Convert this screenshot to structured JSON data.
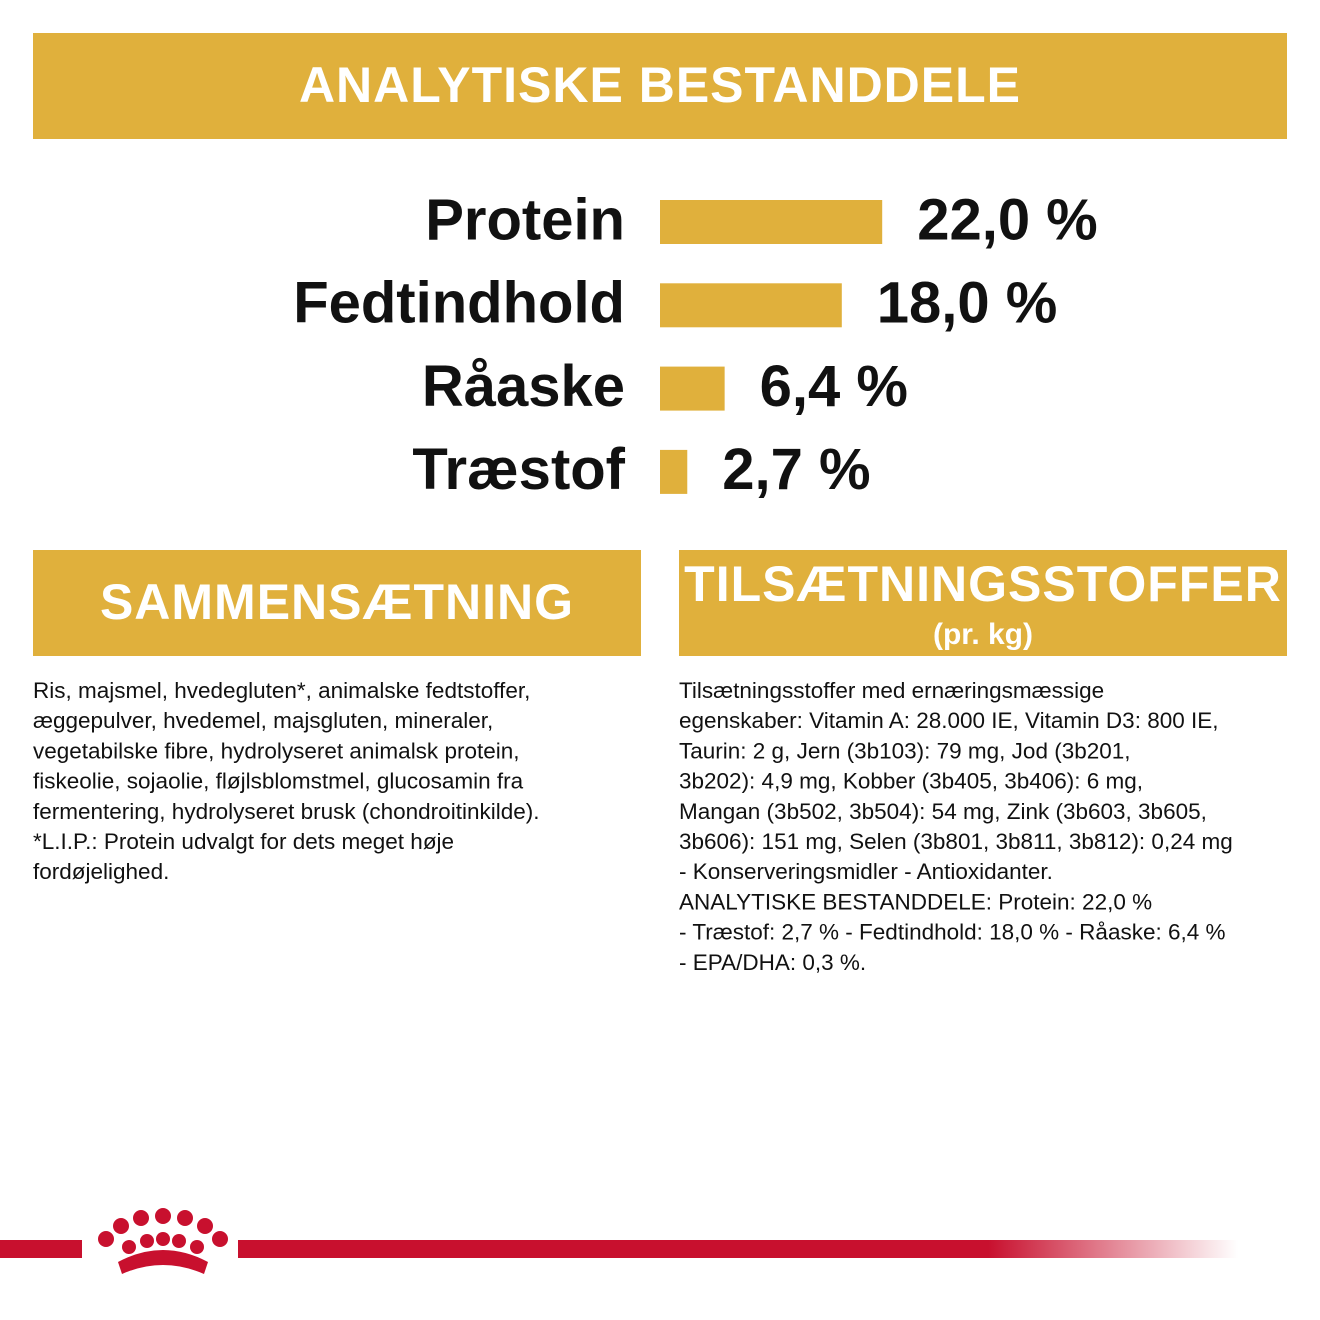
{
  "header": {
    "title": "ANALYTISKE BESTANDDELE"
  },
  "chart_data": {
    "type": "bar",
    "orientation": "horizontal",
    "categories": [
      "Protein",
      "Fedtindhold",
      "Råaske",
      "Træstof"
    ],
    "values": [
      22.0,
      18.0,
      6.4,
      2.7
    ],
    "value_labels": [
      "22,0 %",
      "18,0 %",
      "6,4 %",
      "2,7 %"
    ],
    "color": "#e0b03c"
  },
  "composition": {
    "title": "SAMMENSÆTNING",
    "lines": [
      "Ris, majsmel, hvedegluten*, animalske fedtstoffer,",
      "æggepulver, hvedemel, majsgluten, mineraler,",
      "vegetabilske fibre, hydrolyseret animalsk protein,",
      "fiskeolie, sojaolie, fløjlsblomstmel, glucosamin fra",
      "fermentering, hydrolyseret brusk (chondroitinkilde).",
      "*L.I.P.: Protein udvalgt for dets meget høje",
      "fordøjelighed."
    ]
  },
  "additives": {
    "title": "TILSÆTNINGSSTOFFER",
    "subtitle": "(pr. kg)",
    "lines": [
      "Tilsætningsstoffer med ernæringsmæssige",
      "egenskaber: Vitamin A: 28.000 IE, Vitamin D3: 800 IE,",
      "Taurin: 2 g, Jern (3b103): 79 mg, Jod (3b201,",
      "3b202): 4,9 mg, Kobber (3b405, 3b406): 6 mg,",
      "Mangan (3b502, 3b504): 54 mg, Zink (3b603, 3b605,",
      "3b606): 151 mg, Selen (3b801, 3b811, 3b812): 0,24 mg",
      "- Konserveringsmidler - Antioxidanter.",
      "ANALYTISKE BESTANDDELE: Protein: 22,0 %",
      "- Træstof: 2,7 % - Fedtindhold: 18,0 % - Råaske: 6,4 %",
      "- EPA/DHA: 0,3 %."
    ]
  }
}
